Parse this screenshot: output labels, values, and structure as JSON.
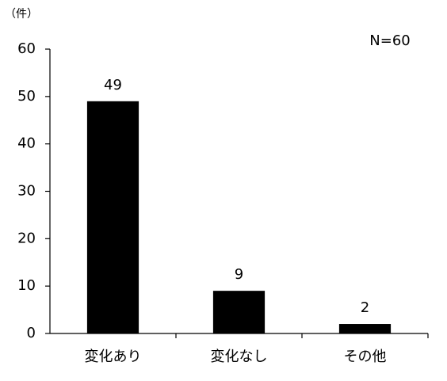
{
  "chart_data": {
    "type": "bar",
    "y_label": "（件）",
    "annotation": "N=60",
    "categories": [
      "変化あり",
      "変化なし",
      "その他"
    ],
    "values": [
      49,
      9,
      2
    ],
    "color": "#000000",
    "ylim": [
      0,
      60
    ],
    "yticks": [
      0,
      10,
      20,
      30,
      40,
      50,
      60
    ],
    "grid": false
  }
}
